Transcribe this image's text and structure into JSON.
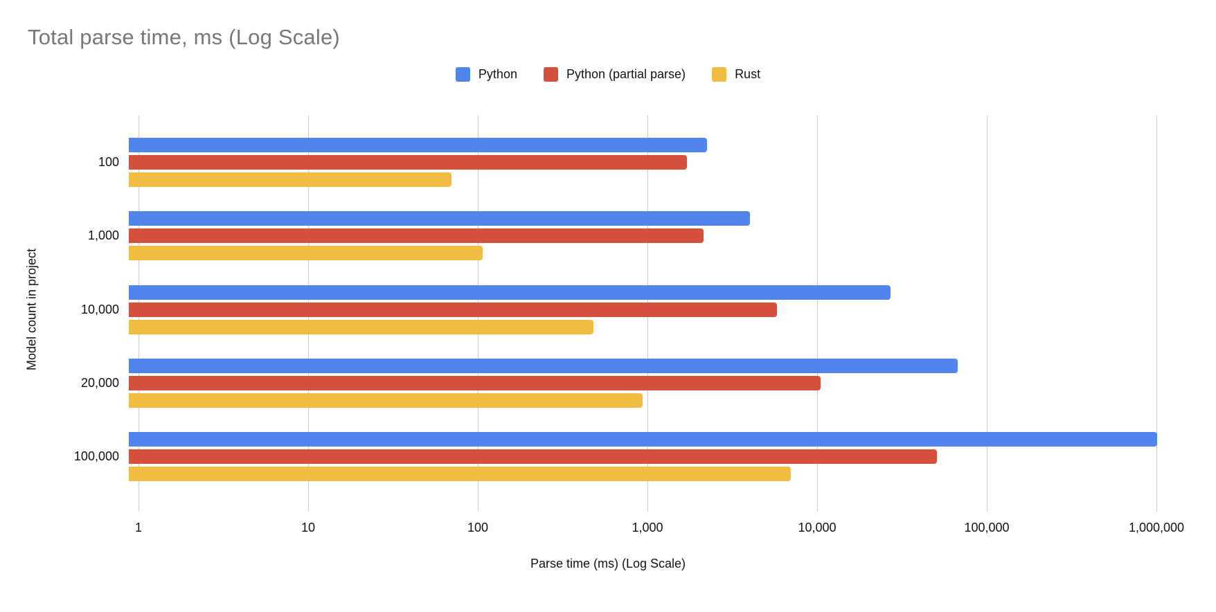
{
  "chart_data": {
    "type": "bar",
    "orientation": "horizontal",
    "title": "Total parse time, ms (Log Scale)",
    "xlabel": "Parse time (ms) (Log Scale)",
    "ylabel": "Model count in project",
    "x_scale": "log10",
    "xlim": [
      1,
      1000000
    ],
    "grid": true,
    "legend_position": "top",
    "gridline_color": "#cccccc",
    "title_color": "#777777",
    "categories": [
      "100",
      "1,000",
      "10,000",
      "20,000",
      "100,000"
    ],
    "x_ticks": [
      "1",
      "10",
      "100",
      "1,000",
      "10,000",
      "100,000",
      "1,000,000"
    ],
    "series": [
      {
        "name": "Python",
        "color": "#5185EC",
        "values": [
          2550,
          4600,
          31000,
          77000,
          1150000
        ]
      },
      {
        "name": "Python (partial parse)",
        "color": "#D5513E",
        "values": [
          1950,
          2450,
          6600,
          12000,
          58000
        ]
      },
      {
        "name": "Rust",
        "color": "#F1BC42",
        "values": [
          80,
          122,
          550,
          1070,
          8000
        ]
      }
    ]
  }
}
